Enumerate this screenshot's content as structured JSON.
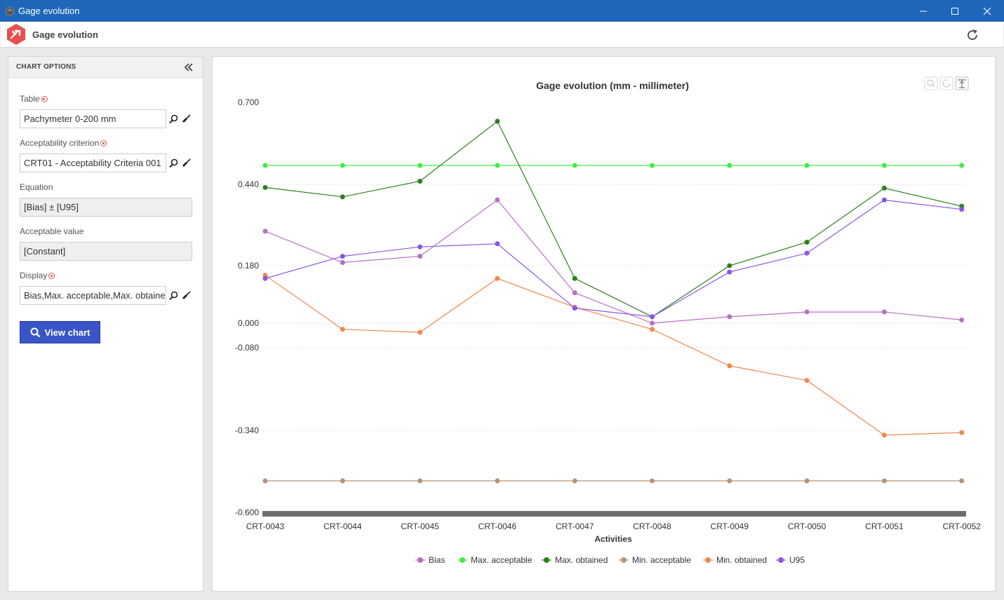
{
  "window": {
    "title": "Gage evolution"
  },
  "header": {
    "title": "Gage evolution"
  },
  "sidebar": {
    "heading": "CHART OPTIONS",
    "fields": [
      {
        "label": "Table",
        "value": "Pachymeter 0-200 mm"
      },
      {
        "label": "Acceptability criterion",
        "value": "CRT01 - Acceptability Criteria 001"
      },
      {
        "label": "Equation",
        "value": "[Bias] ± [U95]"
      },
      {
        "label": "Acceptable value",
        "value": "[Constant]"
      },
      {
        "label": "Display",
        "value": "Bias,Max. acceptable,Max. obtained"
      }
    ],
    "view_button": "View chart"
  },
  "chart_data": {
    "type": "line",
    "title": "Gage evolution (mm - millimeter)",
    "xlabel": "Activities",
    "ylabel": "",
    "y_ticks": [
      "0.700",
      "0.440",
      "0.180",
      "0.000",
      "-0.080",
      "-0.340",
      "-0.600"
    ],
    "grid": "dashed horizontal",
    "legend_position": "bottom",
    "categories": [
      "CRT-0043",
      "CRT-0044",
      "CRT-0045",
      "CRT-0046",
      "CRT-0047",
      "CRT-0048",
      "CRT-0049",
      "CRT-0050",
      "CRT-0051",
      "CRT-0052"
    ],
    "series": [
      {
        "name": "Bias",
        "color": "#b86fc3",
        "values": [
          0.29,
          0.19,
          0.21,
          0.39,
          0.095,
          0.0,
          0.02,
          0.035,
          0.035,
          0.01
        ]
      },
      {
        "name": "Max. acceptable",
        "color": "#3ef03e",
        "values": [
          0.5,
          0.5,
          0.5,
          0.5,
          0.5,
          0.5,
          0.5,
          0.5,
          0.5,
          0.5
        ]
      },
      {
        "name": "Max. obtained",
        "color": "#2d7f1b",
        "values": [
          0.43,
          0.4,
          0.45,
          0.64,
          0.14,
          0.02,
          0.18,
          0.255,
          0.428,
          0.37
        ]
      },
      {
        "name": "Min. acceptable",
        "color": "#b99377",
        "values": [
          -0.5,
          -0.5,
          -0.5,
          -0.5,
          -0.5,
          -0.5,
          -0.5,
          -0.5,
          -0.5,
          -0.5
        ]
      },
      {
        "name": "Min. obtained",
        "color": "#f0884d",
        "values": [
          0.15,
          -0.02,
          -0.03,
          0.14,
          0.05,
          -0.02,
          -0.137,
          -0.183,
          -0.355,
          -0.347
        ]
      },
      {
        "name": "U95",
        "color": "#8a55e8",
        "values": [
          0.14,
          0.21,
          0.24,
          0.25,
          0.047,
          0.02,
          0.16,
          0.22,
          0.39,
          0.36
        ]
      }
    ]
  }
}
